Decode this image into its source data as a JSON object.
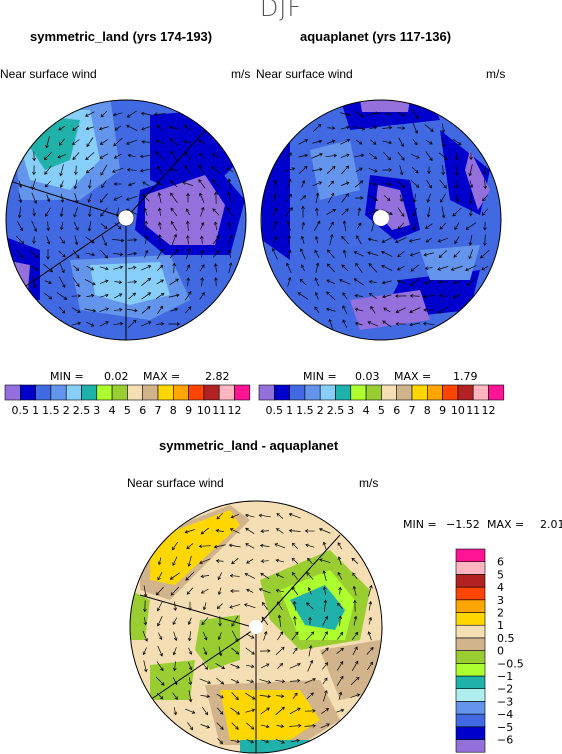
{
  "season": "DJF",
  "panels": [
    {
      "title": "symmetric_land (yrs 174-193)",
      "left_label": "Near surface wind",
      "right_label": "m/s",
      "min_label": "MIN =",
      "min": "0.02",
      "max_label": "MAX =",
      "max": "2.82"
    },
    {
      "title": "aquaplanet (yrs 117-136)",
      "left_label": "Near surface wind",
      "right_label": "m/s",
      "min_label": "MIN =",
      "min": "0.03",
      "max_label": "MAX =",
      "max": "1.79"
    },
    {
      "title": "symmetric_land - aquaplanet",
      "left_label": "Near surface wind",
      "right_label": "m/s",
      "min_label": "MIN =",
      "min": "−1.52",
      "max_label": "MAX =",
      "max": "2.01"
    }
  ],
  "colorbar_field": {
    "colors": [
      "#9370db",
      "#0000cd",
      "#4169e1",
      "#6495ed",
      "#87cefa",
      "#20b2aa",
      "#adff2f",
      "#9acd32",
      "#f5deb3",
      "#d2b48c",
      "#ffd700",
      "#ffa500",
      "#ff4500",
      "#b22222",
      "#ffb6c1",
      "#ff1493"
    ],
    "labels": [
      "0.5",
      "1",
      "1.5",
      "2",
      "2.5",
      "3",
      "4",
      "5",
      "6",
      "7",
      "8",
      "9",
      "10",
      "11",
      "12"
    ]
  },
  "colorbar_diff": {
    "colors": [
      "#9370db",
      "#0000cd",
      "#4169e1",
      "#6495ed",
      "#afeeee",
      "#20b2aa",
      "#adff2f",
      "#9acd32",
      "#d2b48c",
      "#f5deb3",
      "#ffd700",
      "#ffa500",
      "#ff4500",
      "#b22222",
      "#ffb6c1",
      "#ff1493"
    ],
    "labels": [
      "−6",
      "−5",
      "−4",
      "−3",
      "−2",
      "−1",
      "−0.5",
      "0",
      "0.5",
      "1",
      "2",
      "3",
      "4",
      "5",
      "6"
    ]
  },
  "chart_data": [
    {
      "type": "heatmap",
      "title": "symmetric_land (yrs 174-193)",
      "variable": "Near surface wind",
      "units": "m/s",
      "min": 0.02,
      "max": 2.82
    },
    {
      "type": "heatmap",
      "title": "aquaplanet (yrs 117-136)",
      "variable": "Near surface wind",
      "units": "m/s",
      "min": 0.03,
      "max": 1.79
    },
    {
      "type": "heatmap",
      "title": "symmetric_land - aquaplanet",
      "variable": "Near surface wind",
      "units": "m/s",
      "min": -1.52,
      "max": 2.01
    }
  ]
}
